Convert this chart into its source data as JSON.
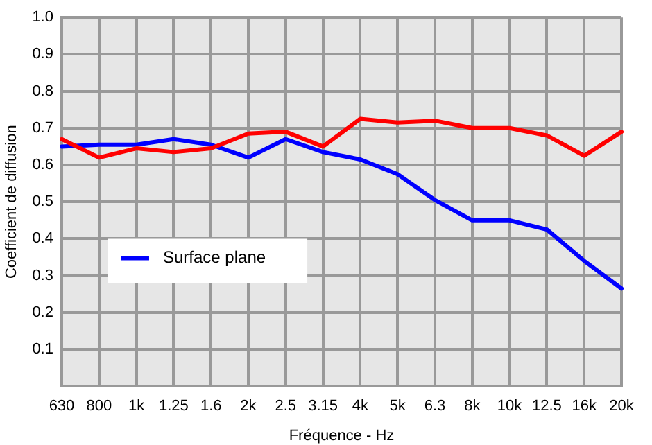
{
  "chart_data": {
    "type": "line",
    "xlabel": "Fréquence - Hz",
    "ylabel": "Coefficient de diffusion",
    "categories": [
      "630",
      "800",
      "1k",
      "1.25",
      "1.6",
      "2k",
      "2.5",
      "3.15",
      "4k",
      "5k",
      "6.3",
      "8k",
      "10k",
      "12.5",
      "16k",
      "20k"
    ],
    "series": [
      {
        "color": "#ff0000",
        "values": [
          0.67,
          0.62,
          0.645,
          0.635,
          0.645,
          0.685,
          0.69,
          0.65,
          0.725,
          0.715,
          0.72,
          0.7,
          0.7,
          0.68,
          0.625,
          0.69
        ]
      },
      {
        "name": "Surface plane",
        "color": "#0000ff",
        "values": [
          0.65,
          0.655,
          0.655,
          0.67,
          0.655,
          0.62,
          0.67,
          0.635,
          0.615,
          0.575,
          0.505,
          0.45,
          0.45,
          0.425,
          0.34,
          0.265
        ]
      }
    ],
    "ylim": [
      0,
      1
    ],
    "yticks": [
      {
        "value": 0,
        "label": null
      },
      0.1,
      0.2,
      0.3,
      0.4,
      0.5,
      0.6,
      0.7,
      0.8,
      0.9,
      {
        "value": 1,
        "label": "1.0"
      }
    ],
    "grid": true,
    "legend": "bottom left",
    "marker": "none",
    "line_style": "solid"
  }
}
